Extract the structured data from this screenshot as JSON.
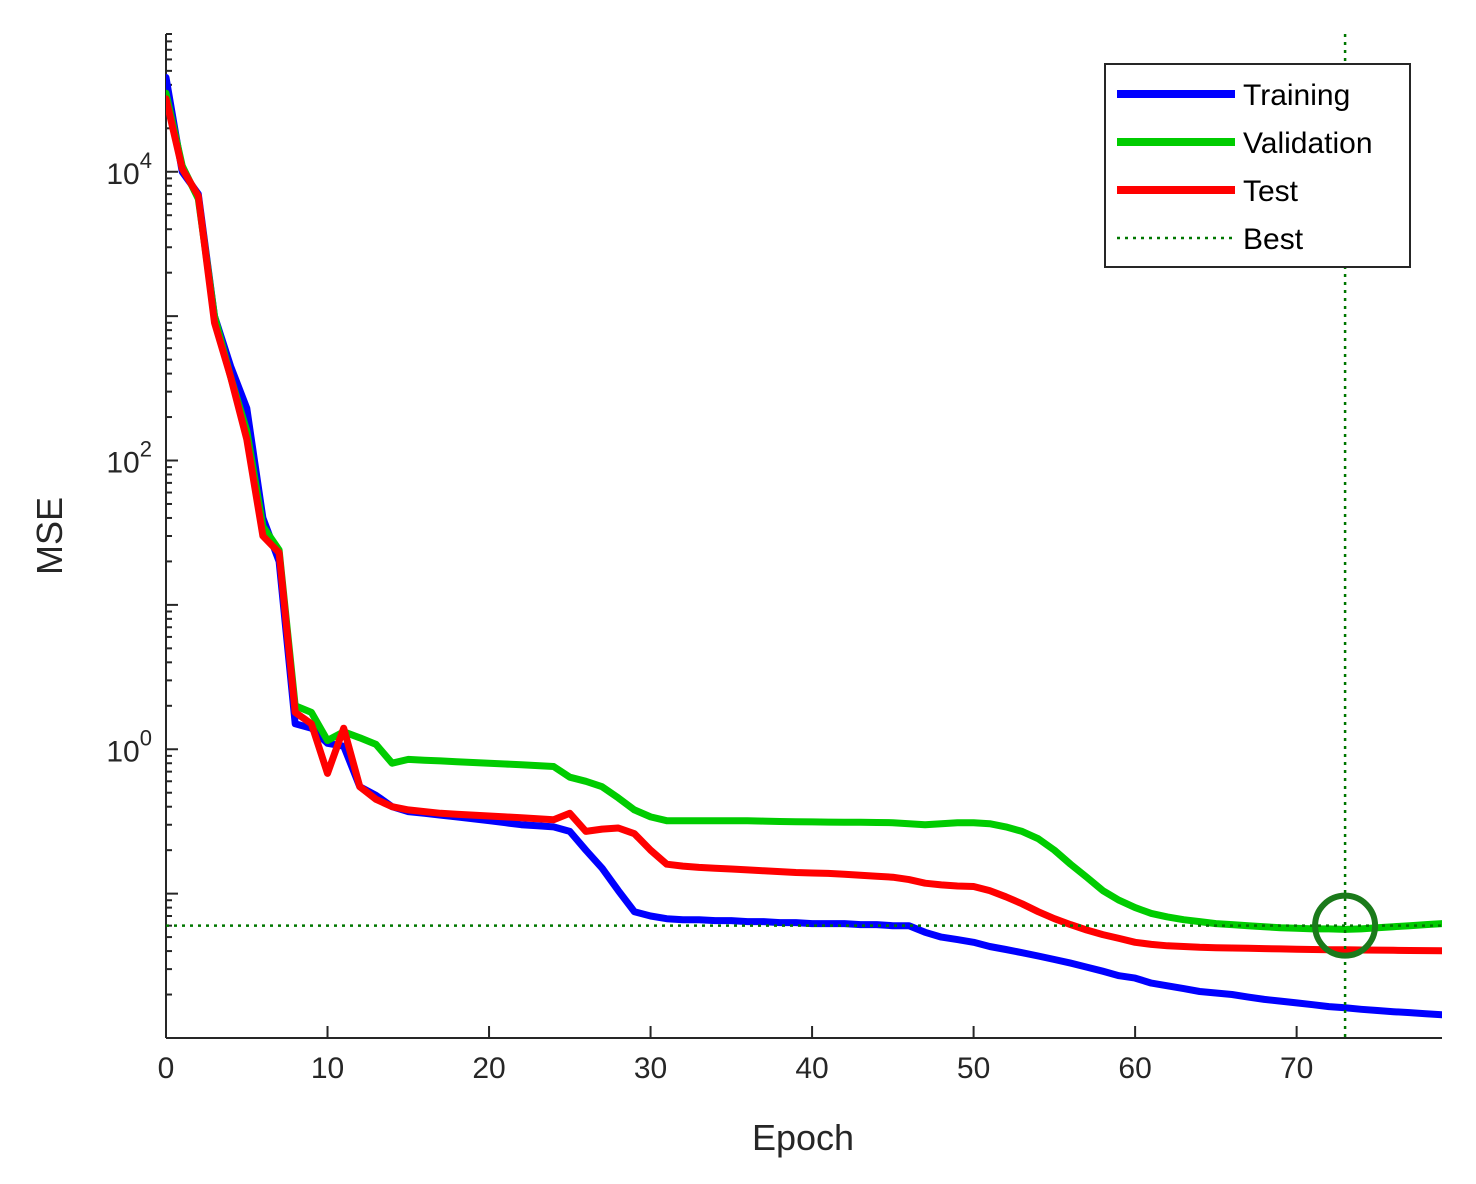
{
  "chart_data": {
    "type": "line",
    "title": "",
    "xlabel": "Epoch",
    "ylabel": "MSE",
    "yscale": "log",
    "xlim": [
      0,
      79
    ],
    "ylim": [
      0.01,
      90000
    ],
    "xticks": [
      0,
      10,
      20,
      30,
      40,
      50,
      60,
      70
    ],
    "xtick_labels": [
      "0",
      "10",
      "20",
      "30",
      "40",
      "50",
      "60",
      "70"
    ],
    "yticks": [
      {
        "value": 10000,
        "base": "10",
        "exp": "4"
      },
      {
        "value": 100,
        "base": "10",
        "exp": "2"
      },
      {
        "value": 1,
        "base": "10",
        "exp": "0"
      }
    ],
    "grid": false,
    "legend_position": "top-right",
    "best": {
      "label": "Best",
      "epoch": 73,
      "value": 0.06
    },
    "series": [
      {
        "name": "Training",
        "color": "#0000ff",
        "x": [
          0,
          1,
          2,
          3,
          4,
          5,
          6,
          7,
          8,
          9,
          10,
          11,
          12,
          13,
          14,
          15,
          16,
          17,
          18,
          19,
          20,
          21,
          22,
          23,
          24,
          25,
          26,
          27,
          28,
          29,
          30,
          31,
          32,
          33,
          34,
          35,
          36,
          37,
          38,
          39,
          40,
          41,
          42,
          43,
          44,
          45,
          46,
          47,
          48,
          49,
          50,
          51,
          52,
          53,
          54,
          55,
          56,
          57,
          58,
          59,
          60,
          61,
          62,
          63,
          64,
          65,
          66,
          67,
          68,
          69,
          70,
          71,
          72,
          73,
          74,
          75,
          76,
          77,
          78,
          79
        ],
        "values": [
          45000,
          10000,
          7000,
          1000,
          450,
          230,
          40,
          20,
          1.5,
          1.4,
          1.1,
          1.05,
          0.55,
          0.48,
          0.4,
          0.37,
          0.36,
          0.35,
          0.34,
          0.33,
          0.32,
          0.31,
          0.3,
          0.295,
          0.29,
          0.27,
          0.2,
          0.15,
          0.105,
          0.075,
          0.07,
          0.067,
          0.066,
          0.066,
          0.065,
          0.065,
          0.064,
          0.064,
          0.063,
          0.063,
          0.062,
          0.062,
          0.062,
          0.061,
          0.061,
          0.06,
          0.06,
          0.054,
          0.05,
          0.048,
          0.046,
          0.043,
          0.041,
          0.039,
          0.037,
          0.035,
          0.033,
          0.031,
          0.029,
          0.027,
          0.026,
          0.024,
          0.023,
          0.022,
          0.021,
          0.0205,
          0.02,
          0.0192,
          0.0185,
          0.018,
          0.0175,
          0.017,
          0.0165,
          0.0162,
          0.0158,
          0.0155,
          0.0152,
          0.015,
          0.0147,
          0.0145
        ]
      },
      {
        "name": "Validation",
        "color": "#00cc00",
        "x": [
          0,
          1,
          2,
          3,
          4,
          5,
          6,
          7,
          8,
          9,
          10,
          11,
          12,
          13,
          14,
          15,
          16,
          17,
          18,
          19,
          20,
          21,
          22,
          23,
          24,
          25,
          26,
          27,
          28,
          29,
          30,
          31,
          32,
          33,
          34,
          35,
          36,
          37,
          38,
          39,
          40,
          41,
          42,
          43,
          44,
          45,
          46,
          47,
          48,
          49,
          50,
          51,
          52,
          53,
          54,
          55,
          56,
          57,
          58,
          59,
          60,
          61,
          62,
          63,
          64,
          65,
          66,
          67,
          68,
          69,
          70,
          71,
          72,
          73,
          74,
          75,
          76,
          77,
          78,
          79
        ],
        "values": [
          35000,
          11000,
          6500,
          1000,
          380,
          160,
          35,
          24,
          2.0,
          1.8,
          1.15,
          1.32,
          1.2,
          1.08,
          0.8,
          0.85,
          0.84,
          0.83,
          0.82,
          0.81,
          0.8,
          0.79,
          0.78,
          0.77,
          0.76,
          0.64,
          0.6,
          0.55,
          0.46,
          0.38,
          0.34,
          0.32,
          0.32,
          0.32,
          0.32,
          0.32,
          0.32,
          0.318,
          0.316,
          0.315,
          0.314,
          0.313,
          0.312,
          0.312,
          0.311,
          0.31,
          0.305,
          0.3,
          0.305,
          0.31,
          0.31,
          0.305,
          0.29,
          0.27,
          0.24,
          0.2,
          0.16,
          0.13,
          0.105,
          0.09,
          0.08,
          0.073,
          0.069,
          0.066,
          0.064,
          0.062,
          0.061,
          0.06,
          0.059,
          0.058,
          0.0575,
          0.057,
          0.057,
          0.0565,
          0.057,
          0.058,
          0.059,
          0.06,
          0.061,
          0.062
        ]
      },
      {
        "name": "Test",
        "color": "#ff0000",
        "x": [
          0,
          1,
          2,
          3,
          4,
          5,
          6,
          7,
          8,
          9,
          10,
          11,
          12,
          13,
          14,
          15,
          16,
          17,
          18,
          19,
          20,
          21,
          22,
          23,
          24,
          25,
          26,
          27,
          28,
          29,
          30,
          31,
          32,
          33,
          34,
          35,
          36,
          37,
          38,
          39,
          40,
          41,
          42,
          43,
          44,
          45,
          46,
          47,
          48,
          49,
          50,
          51,
          52,
          53,
          54,
          55,
          56,
          57,
          58,
          59,
          60,
          61,
          62,
          63,
          64,
          65,
          66,
          67,
          68,
          69,
          70,
          71,
          72,
          73,
          74,
          75,
          76,
          77,
          78,
          79
        ],
        "values": [
          32000,
          10500,
          6800,
          900,
          380,
          140,
          30,
          23,
          1.8,
          1.5,
          0.68,
          1.4,
          0.55,
          0.45,
          0.4,
          0.38,
          0.37,
          0.36,
          0.355,
          0.35,
          0.345,
          0.34,
          0.335,
          0.33,
          0.325,
          0.36,
          0.27,
          0.28,
          0.285,
          0.26,
          0.2,
          0.16,
          0.155,
          0.152,
          0.15,
          0.148,
          0.146,
          0.144,
          0.142,
          0.14,
          0.139,
          0.138,
          0.136,
          0.134,
          0.132,
          0.13,
          0.125,
          0.118,
          0.115,
          0.113,
          0.112,
          0.105,
          0.095,
          0.085,
          0.075,
          0.067,
          0.061,
          0.056,
          0.052,
          0.049,
          0.046,
          0.0445,
          0.0435,
          0.043,
          0.0425,
          0.0422,
          0.042,
          0.0418,
          0.0416,
          0.0414,
          0.0412,
          0.041,
          0.0409,
          0.0408,
          0.0407,
          0.0406,
          0.0405,
          0.0404,
          0.0403,
          0.0402
        ]
      }
    ]
  }
}
